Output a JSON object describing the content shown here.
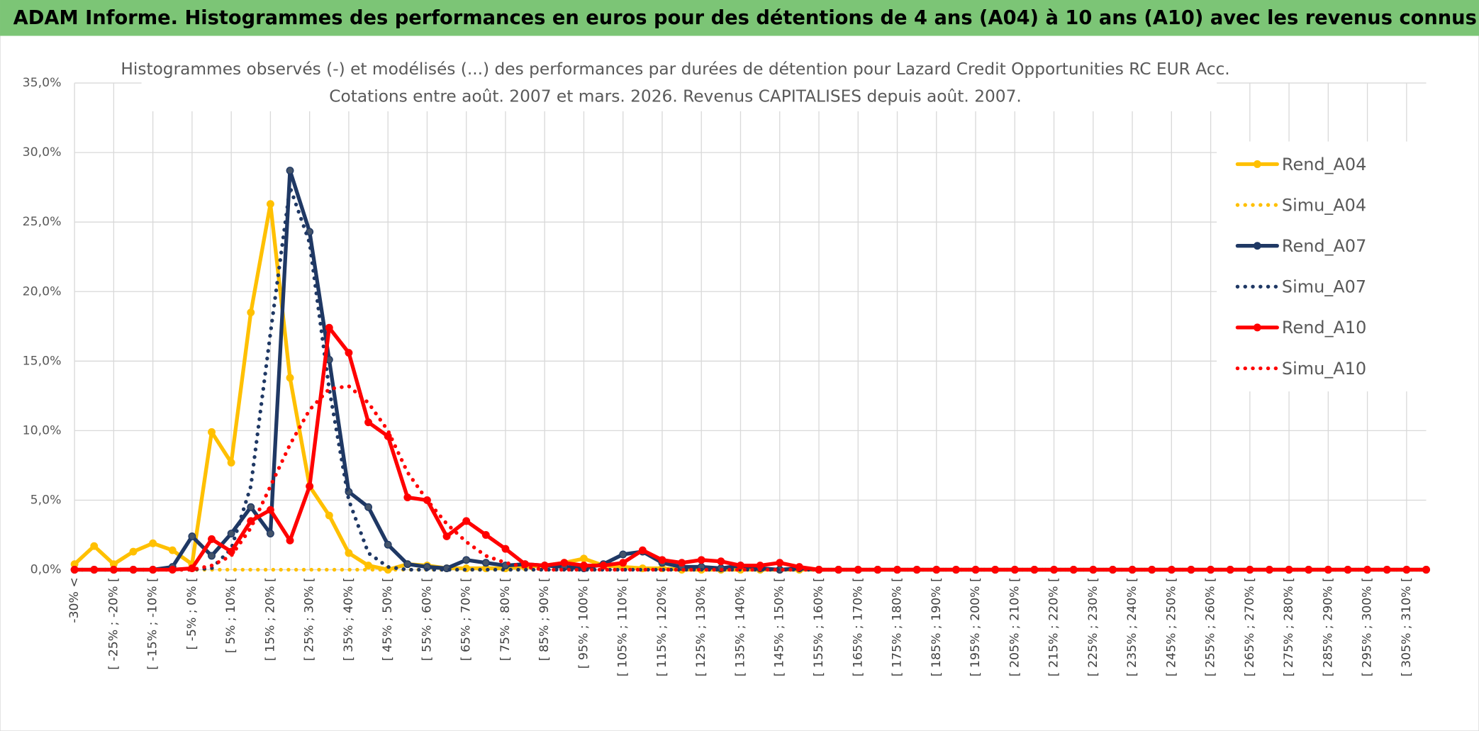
{
  "page_title": "ADAM Informe. Histogrammes des performances en euros pour des détentions de 4 ans (A04) à 10 ans (A10) avec les revenus connus capitalisés",
  "chart_data": {
    "type": "line",
    "title": "Histogrammes observés (-) et modélisés (...) des performances par durées de détention pour Lazard Credit Opportunities RC EUR Acc.",
    "subtitle": "Cotations entre août. 2007 et mars. 2026. Revenus CAPITALISES depuis août. 2007.",
    "categories": [
      "-30% <",
      null,
      "[ -25% ; -20% [",
      null,
      "[ -15% ; -10% [",
      null,
      "[ -5% ; 0% [",
      null,
      "[ 5% ; 10% [",
      null,
      "[ 15% ; 20% [",
      null,
      "[ 25% ; 30% [",
      null,
      "[ 35% ; 40% [",
      null,
      "[ 45% ; 50% [",
      null,
      "[ 55% ; 60% [",
      null,
      "[ 65% ; 70% [",
      null,
      "[ 75% ; 80% [",
      null,
      "[ 85% ; 90% [",
      null,
      "[ 95% ; 100% [",
      null,
      "[ 105% ; 110% [",
      null,
      "[ 115% ; 120% [",
      null,
      "[ 125% ; 130% [",
      null,
      "[ 135% ; 140% [",
      null,
      "[ 145% ; 150% [",
      null,
      "[ 155% ; 160% [",
      null,
      "[ 165% ; 170% [",
      null,
      "[ 175% ; 180% [",
      null,
      "[ 185% ; 190% [",
      null,
      "[ 195% ; 200% [",
      null,
      "[ 205% ; 210% [",
      null,
      "[ 215% ; 220% [",
      null,
      "[ 225% ; 230% [",
      null,
      "[ 235% ; 240% [",
      null,
      "[ 245% ; 250% [",
      null,
      "[ 255% ; 260% [",
      null,
      "[ 265% ; 270% [",
      null,
      "[ 275% ; 280% [",
      null,
      "[ 285% ; 290% [",
      null,
      "[ 295% ; 300% [",
      null,
      "[ 305% ; 310% [",
      null
    ],
    "series": [
      {
        "name": "Rend_A04",
        "color": "#ffc000",
        "style": "solid",
        "markers": true,
        "values": [
          0.4,
          1.7,
          0.4,
          1.3,
          1.9,
          1.4,
          0.4,
          9.9,
          7.7,
          18.5,
          26.3,
          13.8,
          6.0,
          3.9,
          1.2,
          0.3,
          0,
          0.4,
          0.3,
          0.1,
          0.1,
          0.1,
          0.1,
          0.2,
          0.3,
          0.5,
          0.8,
          0.3,
          0.2,
          0.1,
          0.1,
          0,
          0,
          0,
          0,
          0,
          0,
          0,
          0,
          0,
          0,
          0,
          0,
          0,
          0,
          0,
          0,
          0,
          0,
          0,
          0,
          0,
          0,
          0,
          0,
          0,
          0,
          0,
          0,
          0,
          0,
          0,
          0,
          0,
          0,
          0,
          0,
          0,
          0,
          0
        ]
      },
      {
        "name": "Simu_A04",
        "color": "#ffc000",
        "style": "dotted",
        "markers": false,
        "values": [
          0,
          0,
          0,
          0,
          0,
          0,
          0,
          0,
          0,
          0,
          0,
          0,
          0,
          0,
          0,
          0,
          0,
          0,
          0,
          0,
          0,
          0,
          0,
          0,
          0,
          0,
          0,
          0,
          0,
          0,
          0,
          0,
          0,
          0,
          0,
          0,
          0,
          0,
          0,
          0,
          0,
          0,
          0,
          0,
          0,
          0,
          0,
          0,
          0,
          0,
          0,
          0,
          0,
          0,
          0,
          0,
          0,
          0,
          0,
          0,
          0,
          0,
          0,
          0,
          0,
          0,
          0,
          0,
          0,
          0
        ]
      },
      {
        "name": "Rend_A07",
        "color": "#1f3864",
        "style": "solid",
        "markers": true,
        "values": [
          0,
          0,
          0,
          0,
          0,
          0.2,
          2.4,
          1.0,
          2.6,
          4.5,
          2.6,
          28.7,
          24.3,
          15.1,
          5.6,
          4.5,
          1.8,
          0.4,
          0.2,
          0.1,
          0.7,
          0.5,
          0.3,
          0.4,
          0.3,
          0.2,
          0.1,
          0.4,
          1.1,
          1.3,
          0.5,
          0.2,
          0.2,
          0.1,
          0.3,
          0.1,
          0,
          0.1,
          0,
          0,
          0,
          0,
          0,
          0,
          0,
          0,
          0,
          0,
          0,
          0,
          0,
          0,
          0,
          0,
          0,
          0,
          0,
          0,
          0,
          0,
          0,
          0,
          0,
          0,
          0,
          0,
          0,
          0,
          0,
          0
        ]
      },
      {
        "name": "Simu_A07",
        "color": "#1f3864",
        "style": "dotted",
        "markers": false,
        "values": [
          0,
          0,
          0,
          0,
          0,
          0,
          0,
          0.1,
          1.5,
          6,
          17,
          27.5,
          23.5,
          13,
          5,
          1.2,
          0.2,
          0,
          0,
          0,
          0,
          0,
          0,
          0,
          0,
          0,
          0,
          0,
          0,
          0,
          0,
          0,
          0,
          0,
          0,
          0,
          0,
          0,
          0,
          0,
          0,
          0,
          0,
          0,
          0,
          0,
          0,
          0,
          0,
          0,
          0,
          0,
          0,
          0,
          0,
          0,
          0,
          0,
          0,
          0,
          0,
          0,
          0,
          0,
          0,
          0,
          0,
          0,
          0,
          0
        ]
      },
      {
        "name": "Rend_A10",
        "color": "#ff0000",
        "style": "solid",
        "markers": true,
        "values": [
          0,
          0,
          0,
          0,
          0,
          0,
          0.1,
          2.2,
          1.3,
          3.5,
          4.3,
          2.1,
          6.0,
          17.4,
          15.6,
          10.6,
          9.6,
          5.2,
          5.0,
          2.4,
          3.5,
          2.5,
          1.5,
          0.4,
          0.3,
          0.5,
          0.3,
          0.3,
          0.5,
          1.4,
          0.7,
          0.5,
          0.7,
          0.6,
          0.3,
          0.3,
          0.5,
          0.2,
          0,
          0,
          0,
          0,
          0,
          0,
          0,
          0,
          0,
          0,
          0,
          0,
          0,
          0,
          0,
          0,
          0,
          0,
          0,
          0,
          0,
          0,
          0,
          0,
          0,
          0,
          0,
          0,
          0,
          0,
          0,
          0
        ]
      },
      {
        "name": "Simu_A10",
        "color": "#ff0000",
        "style": "dotted",
        "markers": false,
        "values": [
          0,
          0,
          0,
          0,
          0,
          0,
          0,
          0.3,
          1,
          3,
          6,
          9,
          11.5,
          13,
          13.2,
          12,
          10,
          7,
          5,
          3.3,
          2,
          1,
          0.5,
          0.2,
          0,
          0,
          0,
          0,
          0,
          0,
          0,
          0,
          0,
          0,
          0,
          0,
          0,
          0,
          0,
          0,
          0,
          0,
          0,
          0,
          0,
          0,
          0,
          0,
          0,
          0,
          0,
          0,
          0,
          0,
          0,
          0,
          0,
          0,
          0,
          0,
          0,
          0,
          0,
          0,
          0,
          0,
          0,
          0,
          0,
          0
        ]
      }
    ],
    "ylim": [
      0,
      35
    ],
    "yticks": [
      {
        "value": 0,
        "label": "0,0%"
      },
      {
        "value": 5,
        "label": "5,0%"
      },
      {
        "value": 10,
        "label": "10,0%"
      },
      {
        "value": 15,
        "label": "15,0%"
      },
      {
        "value": 20,
        "label": "20,0%"
      },
      {
        "value": 25,
        "label": "25,0%"
      },
      {
        "value": 30,
        "label": "30,0%"
      },
      {
        "value": 35,
        "label": "35,0%"
      }
    ],
    "grid": true,
    "legend": "right"
  }
}
